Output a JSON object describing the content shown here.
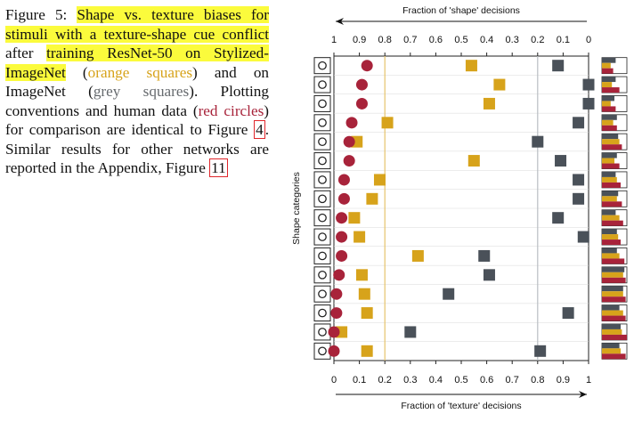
{
  "caption": {
    "figure_label": "Figure 5:",
    "seg1": "Shape vs. texture biases for",
    "seg2": "stimuli with a texture-shape cue conflict",
    "seg3": "after",
    "seg4": "training ResNet-50 on Stylized-ImageNet",
    "seg5": "(",
    "seg6": "orange squares",
    "seg7": ") and on ImageNet (",
    "seg8": "grey squares",
    "seg9": "). Plotting conventions and human data (",
    "seg10": "red circles",
    "seg11": ") for comparison are identical to Figure",
    "ref1": "4",
    "seg12": ". Similar results for other networks are reported in the Appendix, Figure",
    "ref2": "11"
  },
  "colors": {
    "orange": "#d7a31b",
    "grey": "#4a5159",
    "red": "#a8233a",
    "highlight": "#fbfb3c",
    "ref_box": "#e0262b"
  },
  "chart_data": {
    "type": "scatter",
    "top_axis_label": "Fraction of 'shape' decisions",
    "bottom_axis_label": "Fraction of 'texture' decisions",
    "ylabel": "Shape categories",
    "top_ticks": [
      "1",
      "0.9",
      "0.8",
      "0.7",
      "0.6",
      "0.5",
      "0.4",
      "0.3",
      "0.2",
      "0.1",
      "0"
    ],
    "bottom_ticks": [
      "0",
      "0.1",
      "0.2",
      "0.3",
      "0.4",
      "0.5",
      "0.6",
      "0.7",
      "0.8",
      "0.9",
      "1"
    ],
    "xlim": [
      0,
      1
    ],
    "categories": [
      "knife",
      "bottle",
      "airplane",
      "bear",
      "dog",
      "oven",
      "cat",
      "elephant",
      "keyboard",
      "bird",
      "car",
      "truck",
      "boat",
      "chair",
      "clock",
      "bicycle"
    ],
    "category_icons": [
      "knife-icon",
      "bottle-icon",
      "airplane-icon",
      "bear-icon",
      "dog-icon",
      "oven-icon",
      "cat-icon",
      "elephant-icon",
      "keyboard-icon",
      "bird-icon",
      "car-icon",
      "truck-icon",
      "boat-icon",
      "chair-icon",
      "clock-icon",
      "bicycle-icon"
    ],
    "series": [
      {
        "name": "red circles",
        "color": "#a8233a",
        "marker": "circle",
        "values": [
          0.13,
          0.11,
          0.11,
          0.07,
          0.06,
          0.06,
          0.04,
          0.04,
          0.03,
          0.03,
          0.03,
          0.02,
          0.01,
          0.01,
          0.0,
          0.0
        ]
      },
      {
        "name": "orange squares",
        "color": "#d7a31b",
        "marker": "square",
        "values": [
          0.54,
          0.65,
          0.61,
          0.21,
          0.09,
          0.55,
          0.18,
          0.15,
          0.08,
          0.1,
          0.33,
          0.11,
          0.12,
          0.13,
          0.03,
          0.13
        ]
      },
      {
        "name": "grey squares",
        "color": "#4a5159",
        "marker": "square",
        "values": [
          0.88,
          1.0,
          1.0,
          0.96,
          0.8,
          0.89,
          0.96,
          0.96,
          0.88,
          0.98,
          0.59,
          0.61,
          0.45,
          0.92,
          0.3,
          0.81
        ]
      }
    ],
    "reference_lines": [
      0.2,
      0.8
    ],
    "reference_line_colors": [
      "#e6c36b",
      "#b9bec3"
    ],
    "side_bars": {
      "max": 1,
      "rows": [
        [
          0.55,
          0.35,
          0.45
        ],
        [
          0.55,
          0.4,
          0.7
        ],
        [
          0.5,
          0.35,
          0.55
        ],
        [
          0.6,
          0.45,
          0.6
        ],
        [
          0.65,
          0.7,
          0.8
        ],
        [
          0.6,
          0.5,
          0.7
        ],
        [
          0.55,
          0.6,
          0.75
        ],
        [
          0.65,
          0.6,
          0.8
        ],
        [
          0.55,
          0.7,
          0.85
        ],
        [
          0.6,
          0.65,
          0.75
        ],
        [
          0.6,
          0.7,
          0.9
        ],
        [
          0.9,
          0.85,
          0.95
        ],
        [
          0.85,
          0.85,
          0.95
        ],
        [
          0.7,
          0.85,
          0.95
        ],
        [
          0.75,
          0.8,
          1.0
        ],
        [
          0.7,
          0.75,
          0.95
        ]
      ]
    }
  }
}
